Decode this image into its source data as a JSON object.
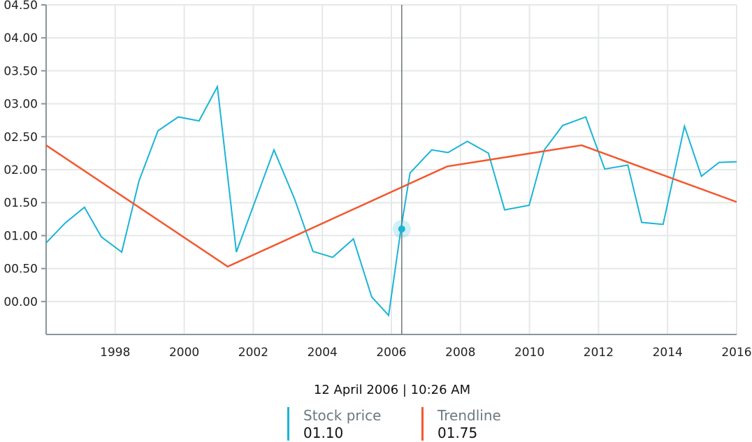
{
  "chart_data": {
    "type": "line",
    "title": "",
    "xlabel": "",
    "ylabel": "",
    "xlim": [
      1996,
      2016
    ],
    "ylim": [
      -0.5,
      4.5
    ],
    "grid": true,
    "x_ticks": [
      1998,
      2000,
      2002,
      2004,
      2006,
      2008,
      2010,
      2012,
      2014,
      2016
    ],
    "y_ticks": [
      "00.00",
      "00.50",
      "01.00",
      "01.50",
      "02.00",
      "02.50",
      "03.00",
      "03.50",
      "04.00",
      "04.50"
    ],
    "y_tick_values": [
      0,
      0.5,
      1,
      1.5,
      2,
      2.5,
      3,
      3.5,
      4,
      4.5
    ],
    "series": [
      {
        "name": "Stock price",
        "color": "#1ab4d6",
        "x": [
          1996.0,
          1996.55,
          1997.11,
          1997.6,
          1998.19,
          1998.69,
          1999.24,
          1999.83,
          2000.43,
          2000.96,
          2001.51,
          2002.6,
          2003.2,
          2003.73,
          2004.3,
          2004.9,
          2005.43,
          2005.92,
          2006.28,
          2006.54,
          2007.17,
          2007.64,
          2008.2,
          2008.81,
          2009.28,
          2009.99,
          2010.43,
          2010.96,
          2011.63,
          2012.18,
          2012.85,
          2013.25,
          2013.87,
          2014.49,
          2014.98,
          2015.49,
          2016.0
        ],
        "y": [
          0.89,
          1.19,
          1.43,
          0.98,
          0.75,
          1.83,
          2.59,
          2.8,
          2.74,
          3.26,
          0.75,
          2.3,
          1.55,
          0.76,
          0.67,
          0.95,
          0.07,
          -0.21,
          1.11,
          1.95,
          2.3,
          2.26,
          2.43,
          2.25,
          1.39,
          1.46,
          2.3,
          2.67,
          2.8,
          2.01,
          2.07,
          1.2,
          1.17,
          2.66,
          1.9,
          2.11,
          2.12
        ]
      },
      {
        "name": "Trendline",
        "color": "#f4572e",
        "x": [
          1996.0,
          2001.26,
          2007.62,
          2011.51,
          2016.0
        ],
        "y": [
          2.37,
          0.53,
          2.05,
          2.37,
          1.51
        ]
      }
    ],
    "crosshair": {
      "x": 2006.3,
      "y": 1.1
    }
  },
  "tooltip": {
    "datetime": "12 April 2006 | 10:26 AM",
    "items": [
      {
        "name": "Stock price",
        "value": "01.10",
        "color": "#1ab4d6"
      },
      {
        "name": "Trendline",
        "value": "01.75",
        "color": "#f4572e"
      }
    ]
  }
}
